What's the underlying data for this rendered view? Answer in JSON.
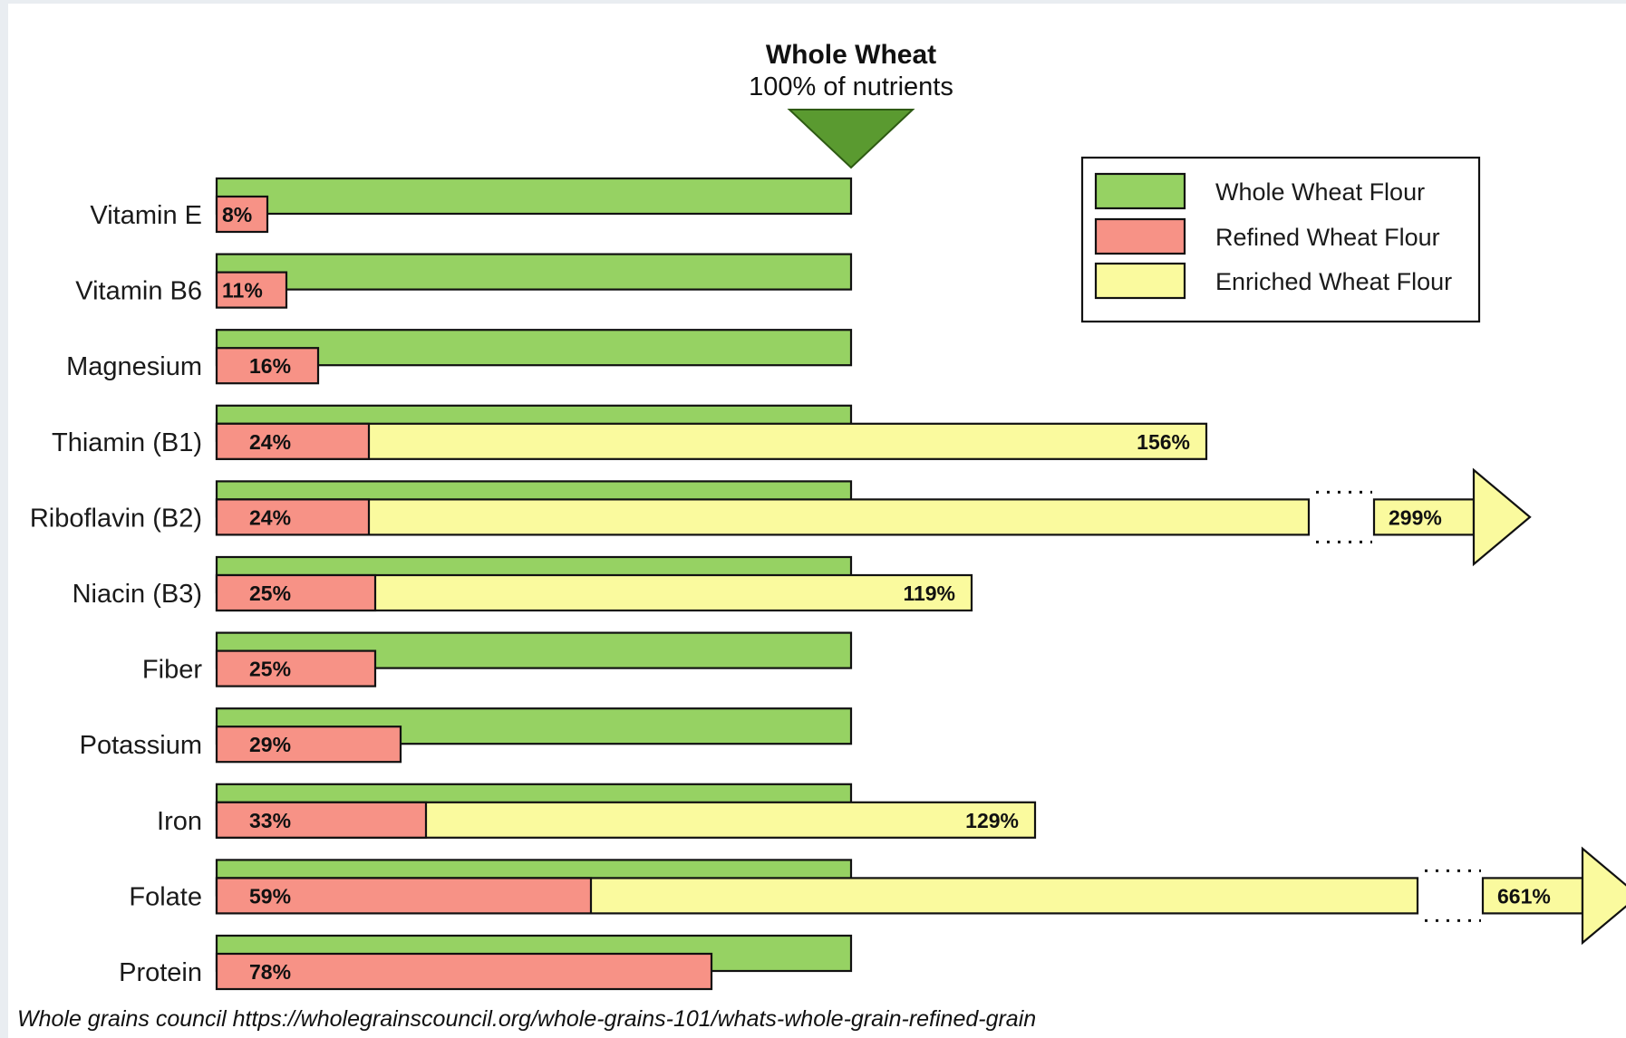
{
  "chart_data": {
    "type": "bar",
    "reference": {
      "title": "Whole Wheat",
      "subtitle": "100% of nutrients",
      "value": 100
    },
    "categories": [
      "Vitamin E",
      "Vitamin B6",
      "Magnesium",
      "Thiamin (B1)",
      "Riboflavin (B2)",
      "Niacin (B3)",
      "Fiber",
      "Potassium",
      "Iron",
      "Folate",
      "Protein"
    ],
    "series": [
      {
        "name": "Whole Wheat Flour",
        "values": [
          100,
          100,
          100,
          100,
          100,
          100,
          100,
          100,
          100,
          100,
          100
        ]
      },
      {
        "name": "Refined Wheat Flour",
        "values": [
          8,
          11,
          16,
          24,
          24,
          25,
          25,
          29,
          33,
          59,
          78
        ],
        "labels": [
          "8%",
          "11%",
          "16%",
          "24%",
          "24%",
          "25%",
          "25%",
          "29%",
          "33%",
          "59%",
          "78%"
        ]
      },
      {
        "name": "Enriched Wheat Flour",
        "values": [
          null,
          null,
          null,
          156,
          299,
          119,
          null,
          null,
          129,
          661,
          null
        ],
        "labels": [
          null,
          null,
          null,
          "156%",
          "299%",
          "119%",
          null,
          null,
          "129%",
          "661%",
          null
        ]
      }
    ],
    "axis_break": [
      "Riboflavin (B2)",
      "Folate"
    ],
    "legend_position": "top-right",
    "grid": false
  },
  "colors": {
    "whole": "#96d263",
    "refined": "#f79286",
    "enriched": "#fafa9e",
    "triangle": "#5a9a30"
  },
  "caption": "Whole grains council https://wholegrainscouncil.org/whole-grains-101/whats-whole-grain-refined-grain"
}
